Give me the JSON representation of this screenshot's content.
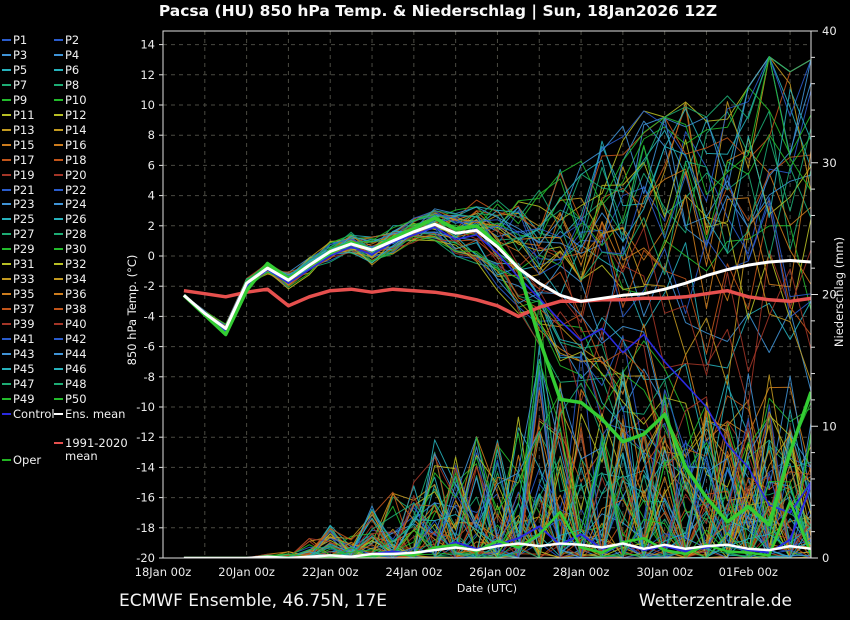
{
  "title": "Pacsa  (HU)  850 hPa Temp. & Niederschlag | Sun, 18Jan2026 12Z",
  "footer": {
    "left": "ECMWF Ensemble, 46.75N, 17E",
    "right": "Wetterzentrale.de"
  },
  "axes": {
    "left_label": "850 hPa Temp. (°C)",
    "right_label": "Niederschlag (mm)",
    "x_label": "Date (UTC)",
    "temp_ticks": [
      14,
      12,
      10,
      8,
      6,
      4,
      2,
      0,
      -2,
      -4,
      -6,
      -8,
      -10,
      -12,
      -14,
      -16,
      -18,
      -20
    ],
    "precip_ticks": [
      0,
      10,
      20,
      30,
      40
    ],
    "x_tick_labels": [
      "18Jan 00z",
      "20Jan 00z",
      "22Jan 00z",
      "24Jan 00z",
      "26Jan 00z",
      "28Jan 00z",
      "30Jan 00z",
      "01Feb 00z"
    ],
    "x_tick_day_positions": [
      0,
      2,
      4,
      6,
      8,
      10,
      12,
      14
    ]
  },
  "legend": {
    "members": [
      {
        "label": "P1",
        "color": "#2a5ccc"
      },
      {
        "label": "P2",
        "color": "#2a5ccc"
      },
      {
        "label": "P3",
        "color": "#3f93d6"
      },
      {
        "label": "P4",
        "color": "#3f93d6"
      },
      {
        "label": "P5",
        "color": "#27b2bc"
      },
      {
        "label": "P6",
        "color": "#27b2bc"
      },
      {
        "label": "P7",
        "color": "#1dac74"
      },
      {
        "label": "P8",
        "color": "#1dac74"
      },
      {
        "label": "P9",
        "color": "#23bb2c"
      },
      {
        "label": "P10",
        "color": "#23bb2c"
      },
      {
        "label": "P11",
        "color": "#b8bf24"
      },
      {
        "label": "P12",
        "color": "#b8bf24"
      },
      {
        "label": "P13",
        "color": "#c39a20"
      },
      {
        "label": "P14",
        "color": "#c39a20"
      },
      {
        "label": "P15",
        "color": "#cd7c1d"
      },
      {
        "label": "P16",
        "color": "#cd7c1d"
      },
      {
        "label": "P17",
        "color": "#c2551a"
      },
      {
        "label": "P18",
        "color": "#c2551a"
      },
      {
        "label": "P19",
        "color": "#a33527"
      },
      {
        "label": "P20",
        "color": "#a33527"
      },
      {
        "label": "P21",
        "color": "#2a5ccc"
      },
      {
        "label": "P22",
        "color": "#2a5ccc"
      },
      {
        "label": "P23",
        "color": "#3f93d6"
      },
      {
        "label": "P24",
        "color": "#3f93d6"
      },
      {
        "label": "P25",
        "color": "#27b2bc"
      },
      {
        "label": "P26",
        "color": "#27b2bc"
      },
      {
        "label": "P27",
        "color": "#1dac74"
      },
      {
        "label": "P28",
        "color": "#1dac74"
      },
      {
        "label": "P29",
        "color": "#23bb2c"
      },
      {
        "label": "P30",
        "color": "#23bb2c"
      },
      {
        "label": "P31",
        "color": "#b8bf24"
      },
      {
        "label": "P32",
        "color": "#b8bf24"
      },
      {
        "label": "P33",
        "color": "#c39a20"
      },
      {
        "label": "P34",
        "color": "#c39a20"
      },
      {
        "label": "P35",
        "color": "#cd7c1d"
      },
      {
        "label": "P36",
        "color": "#cd7c1d"
      },
      {
        "label": "P37",
        "color": "#c2551a"
      },
      {
        "label": "P38",
        "color": "#c2551a"
      },
      {
        "label": "P39",
        "color": "#a33527"
      },
      {
        "label": "P40",
        "color": "#a33527"
      },
      {
        "label": "P41",
        "color": "#2a5ccc"
      },
      {
        "label": "P42",
        "color": "#2a5ccc"
      },
      {
        "label": "P43",
        "color": "#3f93d6"
      },
      {
        "label": "P44",
        "color": "#3f93d6"
      },
      {
        "label": "P45",
        "color": "#27b2bc"
      },
      {
        "label": "P46",
        "color": "#27b2bc"
      },
      {
        "label": "P47",
        "color": "#1dac74"
      },
      {
        "label": "P48",
        "color": "#1dac74"
      },
      {
        "label": "P49",
        "color": "#23bb2c"
      },
      {
        "label": "P50",
        "color": "#23bb2c"
      }
    ],
    "special": {
      "control": {
        "label": "Control",
        "color": "#2a2ae0"
      },
      "ens_mean": {
        "label": "Ens. mean",
        "color": "#ffffff"
      },
      "climate": {
        "label": "1991-2020",
        "label2": "mean",
        "color": "#e6504e"
      },
      "oper": {
        "label": "Oper",
        "color": "#22b422"
      }
    }
  },
  "chart_data": {
    "type": "line",
    "title": "Pacsa  (HU)  850 hPa Temp. & Niederschlag | Sun, 18Jan2026 12Z",
    "xlabel": "Date (UTC)",
    "ylabel_left": "850 hPa Temp. (°C)",
    "ylabel_right": "Niederschlag (mm)",
    "ylim_left": [
      -20,
      14.9
    ],
    "ylim_right": [
      0,
      40
    ],
    "x_range_days": 15.5,
    "grid": "dashed; vertical each day, horizontal each 2°C",
    "legend_position": "left",
    "ensemble_size": 50,
    "x": [
      "18Jan 12z",
      "19Jan 00z",
      "19Jan 12z",
      "20Jan 00z",
      "20Jan 12z",
      "21Jan 00z",
      "21Jan 12z",
      "22Jan 00z",
      "22Jan 12z",
      "23Jan 00z",
      "23Jan 12z",
      "24Jan 00z",
      "24Jan 12z",
      "25Jan 00z",
      "25Jan 12z",
      "26Jan 00z",
      "26Jan 12z",
      "27Jan 00z",
      "27Jan 12z",
      "28Jan 00z",
      "28Jan 12z",
      "29Jan 00z",
      "29Jan 12z",
      "30Jan 00z",
      "30Jan 12z",
      "31Jan 00z",
      "31Jan 12z",
      "01Feb 00z",
      "01Feb 12z",
      "02Feb 00z",
      "02Feb 12z"
    ],
    "series": [
      {
        "name": "Ens. mean",
        "axis": "temp",
        "color": "#ffffff",
        "width": 3,
        "values": [
          -2.6,
          -3.8,
          -4.8,
          -1.8,
          -0.8,
          -1.6,
          -0.6,
          0.3,
          0.8,
          0.4,
          1.0,
          1.6,
          2.1,
          1.5,
          1.7,
          0.6,
          -0.8,
          -1.8,
          -2.6,
          -3.0,
          -2.8,
          -2.6,
          -2.5,
          -2.2,
          -1.8,
          -1.3,
          -0.9,
          -0.6,
          -0.4,
          -0.3,
          -0.4
        ]
      },
      {
        "name": "Oper",
        "axis": "temp",
        "color": "#33cc33",
        "width": 3.5,
        "values": [
          -2.6,
          -3.9,
          -5.2,
          -2.3,
          -0.5,
          -1.5,
          -0.6,
          0.2,
          0.9,
          0.4,
          1.2,
          1.8,
          2.5,
          1.8,
          2.0,
          0.8,
          -0.8,
          -5.5,
          -9.5,
          -9.7,
          -10.8,
          -12.3,
          -11.8,
          -10.5,
          -14.0,
          -16.0,
          -17.6,
          -16.6,
          -17.8,
          -13.0,
          -9.0
        ]
      },
      {
        "name": "Control",
        "axis": "temp",
        "color": "#2a2ae0",
        "width": 1.6,
        "values": [
          -2.6,
          -3.7,
          -5.0,
          -2.0,
          -0.9,
          -1.8,
          -0.9,
          0.0,
          0.6,
          0.1,
          0.9,
          1.4,
          1.9,
          1.1,
          1.4,
          0.2,
          -1.4,
          -2.8,
          -4.3,
          -5.6,
          -4.8,
          -6.4,
          -5.2,
          -7.0,
          -8.5,
          -10.0,
          -12.5,
          -14.0,
          -16.5,
          -17.0,
          -15.0
        ]
      },
      {
        "name": "1991-2020 mean",
        "axis": "temp",
        "color": "#e6504e",
        "width": 3.5,
        "values": [
          -2.3,
          -2.5,
          -2.7,
          -2.4,
          -2.2,
          -3.3,
          -2.7,
          -2.3,
          -2.2,
          -2.4,
          -2.2,
          -2.3,
          -2.4,
          -2.6,
          -2.9,
          -3.3,
          -4.0,
          -3.4,
          -3.0,
          -3.0,
          -2.9,
          -2.9,
          -2.8,
          -2.8,
          -2.7,
          -2.5,
          -2.3,
          -2.7,
          -2.9,
          -3.0,
          -2.8
        ]
      },
      {
        "name": "Ens. mean (precip)",
        "axis": "precip",
        "color": "#ffffff",
        "width": 2.5,
        "values": [
          0,
          0,
          0,
          0,
          0.1,
          0,
          0.1,
          0.2,
          0.1,
          0.3,
          0.3,
          0.4,
          0.6,
          0.8,
          0.6,
          0.9,
          1.1,
          0.9,
          1.1,
          1.0,
          0.8,
          1.1,
          0.7,
          1.0,
          0.7,
          0.9,
          1.0,
          0.7,
          0.6,
          0.9,
          0.7
        ]
      },
      {
        "name": "Oper (precip)",
        "axis": "precip",
        "color": "#33cc33",
        "width": 2.5,
        "values": [
          0,
          0,
          0,
          0,
          0,
          0,
          0,
          0.1,
          0,
          0.2,
          0.3,
          0.2,
          0.8,
          1.0,
          0.5,
          1.3,
          0.8,
          1.8,
          3.5,
          0.8,
          0.4,
          1.2,
          1.5,
          0.6,
          0.3,
          1.0,
          0.5,
          0.4,
          0.2,
          4.3,
          0.3
        ]
      },
      {
        "name": "Control (precip)",
        "axis": "precip",
        "color": "#2a2ae0",
        "width": 2,
        "values": [
          0,
          0,
          0,
          0,
          0,
          0,
          0.1,
          0.2,
          0.1,
          0.3,
          0.5,
          0.3,
          0.6,
          1.2,
          0.7,
          1.0,
          1.5,
          2.4,
          1.0,
          1.8,
          0.7,
          1.1,
          0.6,
          0.9,
          0.5,
          0.8,
          1.0,
          0.6,
          0.4,
          1.4,
          5.5
        ]
      }
    ],
    "ensemble": {
      "temp_envelope_min": [
        -2.6,
        -4.3,
        -5.8,
        -3.4,
        -1.8,
        -3.0,
        -2.0,
        -1.2,
        -1.0,
        -1.5,
        -0.6,
        0.0,
        0.5,
        -0.6,
        -1.2,
        -2.6,
        -4.2,
        -6.5,
        -8.5,
        -10.0,
        -11.0,
        -12.0,
        -13.0,
        -14.0,
        -15.5,
        -17.0,
        -18.5,
        -18.0,
        -19.3,
        -19.6,
        -19.2
      ],
      "temp_envelope_max": [
        -2.6,
        -3.2,
        -4.2,
        -1.4,
        0.3,
        -0.4,
        0.6,
        1.5,
        2.0,
        2.0,
        2.5,
        3.0,
        3.6,
        3.6,
        4.0,
        4.2,
        4.6,
        5.2,
        6.2,
        7.0,
        8.0,
        8.6,
        9.6,
        9.2,
        10.2,
        9.2,
        10.6,
        11.2,
        13.2,
        12.2,
        13.0
      ],
      "precip_member_max": [
        0,
        0,
        0,
        0,
        0.3,
        0.5,
        1.5,
        2.5,
        2,
        4,
        5,
        6,
        9,
        8,
        10,
        9,
        12,
        20,
        14,
        16,
        12,
        15,
        10,
        13,
        11,
        14,
        10,
        12,
        15,
        10,
        12
      ]
    },
    "colors": {
      "grid": "#4a4a42",
      "border": "#e0e0e0",
      "tick_text": "#ebebeb",
      "background": "#000000"
    }
  }
}
